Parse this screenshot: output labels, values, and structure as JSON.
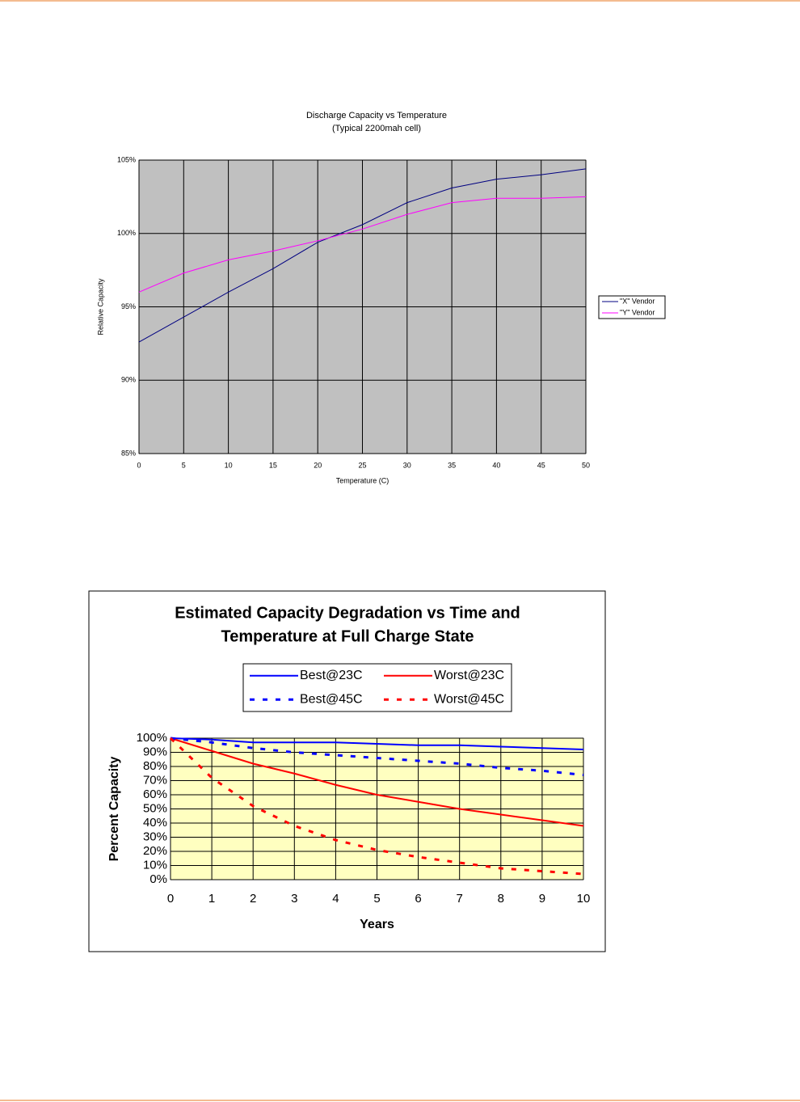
{
  "chart_data": [
    {
      "type": "line",
      "title": "Discharge Capacity vs Temperature",
      "subtitle": "(Typical 2200mah cell)",
      "x_label": "Temperature (C)",
      "y_label": "Relative Capacity",
      "x": [
        0,
        5,
        10,
        15,
        20,
        25,
        30,
        35,
        40,
        45,
        50
      ],
      "series": [
        {
          "name": "\"X\" Vendor",
          "color": "#000080",
          "values": [
            92.6,
            94.3,
            96.0,
            97.6,
            99.4,
            100.6,
            102.1,
            103.1,
            103.7,
            104.0,
            104.4
          ]
        },
        {
          "name": "\"Y\" Vendor",
          "color": "#ff00ff",
          "values": [
            96.0,
            97.3,
            98.2,
            98.8,
            99.5,
            100.3,
            101.3,
            102.1,
            102.4,
            102.4,
            102.5
          ]
        }
      ],
      "xlim": [
        0,
        50
      ],
      "xticks": [
        0,
        5,
        10,
        15,
        20,
        25,
        30,
        35,
        40,
        45,
        50
      ],
      "ylim": [
        85,
        105
      ],
      "yticks": [
        {
          "value": 85,
          "label": "85%"
        },
        {
          "value": 90,
          "label": "90%"
        },
        {
          "value": 95,
          "label": "95%"
        },
        {
          "value": 100,
          "label": "100%"
        },
        {
          "value": 105,
          "label": "105%"
        }
      ],
      "grid": true,
      "legend": "right",
      "plot_background": "#c0c0c0"
    },
    {
      "type": "line",
      "title": [
        "Estimated Capacity Degradation vs Time and",
        "Temperature at Full Charge State"
      ],
      "x_label": "Years",
      "y_label": "Percent Capacity",
      "x": [
        0,
        1,
        2,
        3,
        4,
        5,
        6,
        7,
        8,
        9,
        10
      ],
      "series": [
        {
          "name": "Best@23C",
          "color": "#0000ff",
          "style": "solid",
          "values": [
            100,
            99,
            97,
            97,
            97,
            96,
            95,
            95,
            94,
            93,
            92
          ]
        },
        {
          "name": "Worst@23C",
          "color": "#ff0000",
          "style": "solid",
          "values": [
            100,
            91,
            82,
            75,
            67,
            60,
            55,
            50,
            46,
            42,
            38
          ]
        },
        {
          "name": "Best@45C",
          "color": "#0000ff",
          "style": "dashed",
          "values": [
            100,
            97,
            93,
            90,
            88,
            86,
            84,
            82,
            79,
            77,
            74
          ]
        },
        {
          "name": "Worst@45C",
          "color": "#ff0000",
          "style": "dashed",
          "values": [
            100,
            72,
            52,
            38,
            28,
            21,
            16,
            12,
            8,
            6,
            4
          ]
        }
      ],
      "xlim": [
        0,
        10
      ],
      "xticks": [
        0,
        1,
        2,
        3,
        4,
        5,
        6,
        7,
        8,
        9,
        10
      ],
      "ylim": [
        0,
        100
      ],
      "yticks": [
        {
          "value": 0,
          "label": "0%"
        },
        {
          "value": 10,
          "label": "10%"
        },
        {
          "value": 20,
          "label": "20%"
        },
        {
          "value": 30,
          "label": "30%"
        },
        {
          "value": 40,
          "label": "40%"
        },
        {
          "value": 50,
          "label": "50%"
        },
        {
          "value": 60,
          "label": "60%"
        },
        {
          "value": 70,
          "label": "70%"
        },
        {
          "value": 80,
          "label": "80%"
        },
        {
          "value": 90,
          "label": "90%"
        },
        {
          "value": 100,
          "label": "100%"
        }
      ],
      "grid": true,
      "legend": "top",
      "plot_background": "#ffffc0"
    }
  ]
}
